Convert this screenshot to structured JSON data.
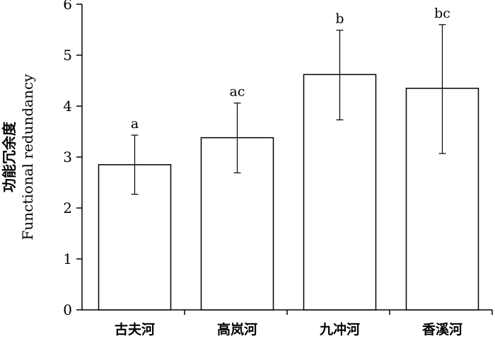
{
  "chart_data": {
    "type": "bar",
    "categories": [
      "古夫河",
      "高岚河",
      "九冲河",
      "香溪河"
    ],
    "values": [
      2.85,
      3.38,
      4.62,
      4.35
    ],
    "error_bars": {
      "lower": [
        2.27,
        2.69,
        3.73,
        3.07
      ],
      "upper": [
        3.43,
        4.06,
        5.49,
        5.6
      ]
    },
    "significance_labels": [
      "a",
      "ac",
      "b",
      "bc"
    ],
    "ylabel": {
      "zh": "功能冗余度",
      "en": "Functional redundancy"
    },
    "ylim": [
      0,
      6
    ],
    "yticks": [
      "0",
      "1",
      "2",
      "3",
      "4",
      "5",
      "6"
    ],
    "grid": false,
    "bar_fill": "#ffffff",
    "bar_stroke": "#000000"
  }
}
